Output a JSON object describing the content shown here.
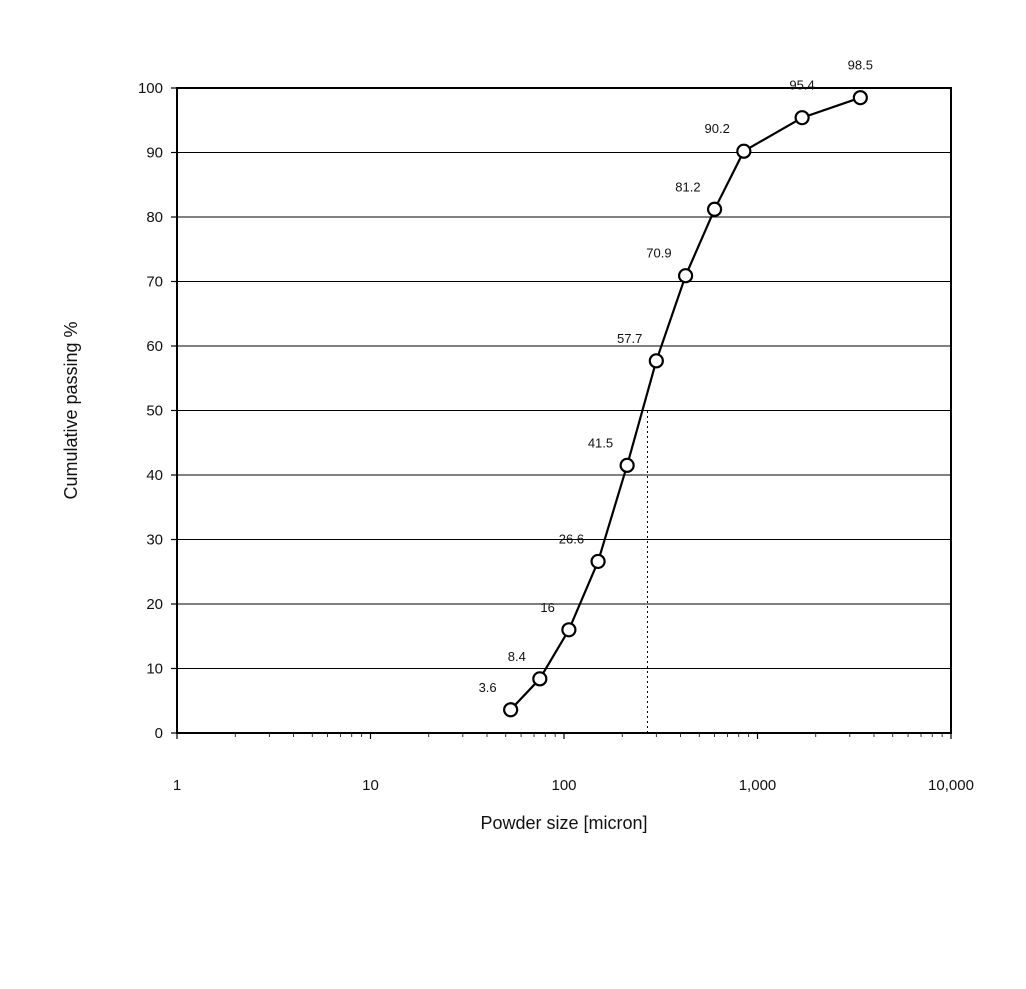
{
  "chart_data": {
    "type": "line",
    "title": "",
    "xlabel": "Powder size [micron]",
    "ylabel": "Cumulative passing %",
    "x_scale": "log",
    "xlim": [
      1,
      10000
    ],
    "ylim": [
      0,
      100
    ],
    "x_ticks": [
      {
        "value": 1,
        "label": "1"
      },
      {
        "value": 10,
        "label": "10"
      },
      {
        "value": 100,
        "label": "100"
      },
      {
        "value": 1000,
        "label": "1,000"
      },
      {
        "value": 10000,
        "label": "10,000"
      }
    ],
    "y_ticks": [
      {
        "value": 0,
        "label": "0"
      },
      {
        "value": 10,
        "label": "10"
      },
      {
        "value": 20,
        "label": "20"
      },
      {
        "value": 30,
        "label": "30"
      },
      {
        "value": 40,
        "label": "40"
      },
      {
        "value": 50,
        "label": "50"
      },
      {
        "value": 60,
        "label": "60"
      },
      {
        "value": 70,
        "label": "70"
      },
      {
        "value": 80,
        "label": "80"
      },
      {
        "value": 90,
        "label": "90"
      },
      {
        "value": 100,
        "label": "100"
      }
    ],
    "grid": "horizontal",
    "marker": "open-circle",
    "series": [
      {
        "points": [
          {
            "x": 53,
            "y": 3.6,
            "label": "3.6"
          },
          {
            "x": 75,
            "y": 8.4,
            "label": "8.4"
          },
          {
            "x": 106,
            "y": 16,
            "label": "16"
          },
          {
            "x": 150,
            "y": 26.6,
            "label": "26.6"
          },
          {
            "x": 212,
            "y": 41.5,
            "label": "41.5"
          },
          {
            "x": 300,
            "y": 57.7,
            "label": "57.7"
          },
          {
            "x": 425,
            "y": 70.9,
            "label": "70.9"
          },
          {
            "x": 600,
            "y": 81.2,
            "label": "81.2"
          },
          {
            "x": 850,
            "y": 90.2,
            "label": "90.2"
          },
          {
            "x": 1700,
            "y": 95.4,
            "label": "95.4"
          },
          {
            "x": 3400,
            "y": 98.5,
            "label": "98.5"
          }
        ]
      }
    ],
    "reference_line": {
      "orientation": "vertical",
      "x": 270,
      "y_from": 0,
      "y_to": 50,
      "style": "dotted"
    },
    "colors": {
      "line": "#000000",
      "grid": "#000000",
      "marker_fill": "#ffffff"
    }
  }
}
